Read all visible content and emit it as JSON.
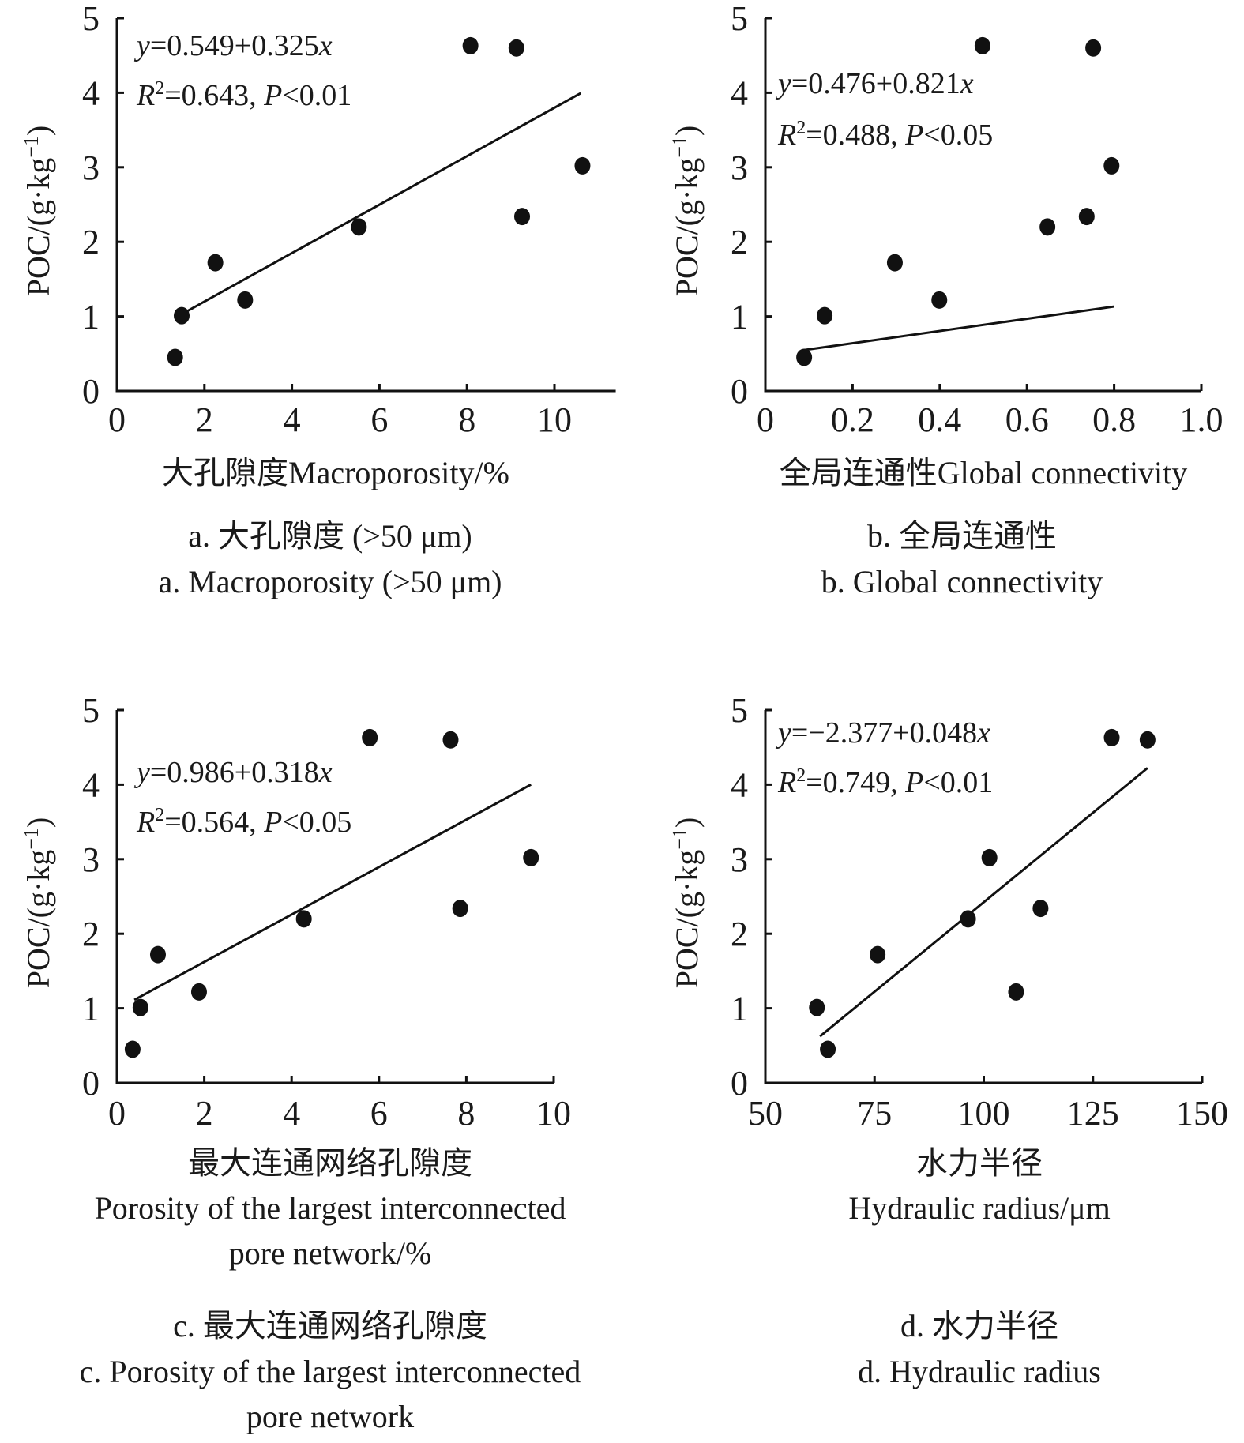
{
  "chart_data": [
    {
      "id": "a",
      "type": "scatter",
      "ylabel": "POC/(g·kg⁻¹)",
      "ylabel_parts": {
        "main": "POC/(g·kg",
        "sup": "−1",
        "close": ")"
      },
      "xlabel_lines": [
        "大孔隙度Macroporosity/%"
      ],
      "caption_lines": [
        "a. 大孔隙度 (>50 μm)",
        "a. Macroporosity (>50 μm)"
      ],
      "xlim": [
        0,
        11.4
      ],
      "ylim": [
        0,
        5
      ],
      "xticks": [
        0,
        2,
        4,
        6,
        8,
        10
      ],
      "xtick_labels": [
        "0",
        "2",
        "4",
        "6",
        "8",
        "10"
      ],
      "yticks": [
        0,
        1,
        2,
        3,
        4,
        5
      ],
      "ytick_labels": [
        "0",
        "1",
        "2",
        "3",
        "4",
        "5"
      ],
      "x": [
        1.33,
        1.48,
        2.25,
        2.93,
        5.53,
        8.08,
        9.13,
        9.26,
        10.64
      ],
      "y": [
        0.45,
        1.01,
        1.72,
        1.22,
        2.2,
        4.63,
        4.6,
        2.34,
        3.02
      ],
      "fit": {
        "intercept": 0.549,
        "slope": 0.325,
        "x_range": [
          1.5,
          10.6
        ]
      },
      "equation": {
        "y_var": "y",
        "rhs": "=0.549+0.325",
        "x_var": "x"
      },
      "stats": {
        "r_var": "R",
        "r_sup": "2",
        "r_value": "=0.643, ",
        "p_var": "P",
        "p_value": "<0.01"
      }
    },
    {
      "id": "b",
      "type": "scatter",
      "ylabel": "POC/(g·kg⁻¹)",
      "ylabel_parts": {
        "main": "POC/(g·kg",
        "sup": "−1",
        "close": ")"
      },
      "xlabel_lines": [
        "全局连通性Global connectivity"
      ],
      "caption_lines": [
        "b. 全局连通性",
        "b. Global connectivity"
      ],
      "xlim": [
        0,
        1.0
      ],
      "ylim": [
        0,
        5
      ],
      "xticks": [
        0,
        0.2,
        0.4,
        0.6,
        0.8,
        1.0
      ],
      "xtick_labels": [
        "0",
        "0.2",
        "0.4",
        "0.6",
        "0.8",
        "1.0"
      ],
      "yticks": [
        0,
        1,
        2,
        3,
        4,
        5
      ],
      "ytick_labels": [
        "0",
        "1",
        "2",
        "3",
        "4",
        "5"
      ],
      "x": [
        0.089,
        0.136,
        0.297,
        0.399,
        0.498,
        0.647,
        0.737,
        0.752,
        0.794
      ],
      "y": [
        0.45,
        1.01,
        1.72,
        1.22,
        4.63,
        2.2,
        2.34,
        4.6,
        3.02
      ],
      "fit": {
        "intercept": 0.476,
        "slope": 0.821,
        "x_range": [
          0.09,
          0.8
        ]
      },
      "equation": {
        "y_var": "y",
        "rhs": "=0.476+0.821",
        "x_var": "x"
      },
      "stats": {
        "r_var": "R",
        "r_sup": "2",
        "r_value": "=0.488, ",
        "p_var": "P",
        "p_value": "<0.05"
      }
    },
    {
      "id": "c",
      "type": "scatter",
      "ylabel": "POC/(g·kg⁻¹)",
      "ylabel_parts": {
        "main": "POC/(g·kg",
        "sup": "−1",
        "close": ")"
      },
      "xlabel_lines": [
        "最大连通网络孔隙度",
        "Porosity of the largest interconnected",
        "pore network/%"
      ],
      "caption_lines": [
        "c. 最大连通网络孔隙度",
        "c. Porosity of the largest interconnected",
        "pore network"
      ],
      "xlim": [
        0,
        10
      ],
      "ylim": [
        0,
        5
      ],
      "xticks": [
        0,
        2,
        4,
        6,
        8,
        10
      ],
      "xtick_labels": [
        "0",
        "2",
        "4",
        "6",
        "8",
        "10"
      ],
      "yticks": [
        0,
        1,
        2,
        3,
        4,
        5
      ],
      "ytick_labels": [
        "0",
        "1",
        "2",
        "3",
        "4",
        "5"
      ],
      "x": [
        0.36,
        0.54,
        0.94,
        1.88,
        4.28,
        5.79,
        7.64,
        7.86,
        9.48
      ],
      "y": [
        0.45,
        1.01,
        1.72,
        1.22,
        2.2,
        4.63,
        4.6,
        2.34,
        3.02
      ],
      "fit": {
        "intercept": 0.986,
        "slope": 0.318,
        "x_range": [
          0.4,
          9.48
        ]
      },
      "equation": {
        "y_var": "y",
        "rhs": "=0.986+0.318",
        "x_var": "x"
      },
      "stats": {
        "r_var": "R",
        "r_sup": "2",
        "r_value": "=0.564, ",
        "p_var": "P",
        "p_value": "<0.05"
      }
    },
    {
      "id": "d",
      "type": "scatter",
      "ylabel": "POC/(g·kg⁻¹)",
      "ylabel_parts": {
        "main": "POC/(g·kg",
        "sup": "−1",
        "close": ")"
      },
      "xlabel_lines": [
        "水力半径",
        "Hydraulic radius/μm"
      ],
      "caption_lines": [
        "d. 水力半径",
        "d. Hydraulic radius"
      ],
      "xlim": [
        50,
        150
      ],
      "ylim": [
        0,
        5
      ],
      "xticks": [
        50,
        75,
        100,
        125,
        150
      ],
      "xtick_labels": [
        "50",
        "75",
        "100",
        "125",
        "150"
      ],
      "yticks": [
        0,
        1,
        2,
        3,
        4,
        5
      ],
      "ytick_labels": [
        "0",
        "1",
        "2",
        "3",
        "4",
        "5"
      ],
      "x": [
        61.8,
        64.3,
        75.7,
        96.4,
        101.3,
        107.4,
        113.0,
        129.3,
        137.5
      ],
      "y": [
        1.01,
        0.45,
        1.72,
        2.2,
        3.02,
        1.22,
        2.34,
        4.63,
        4.6
      ],
      "fit": {
        "intercept": -2.377,
        "slope": 0.048,
        "x_range": [
          62.5,
          137.5
        ]
      },
      "equation": {
        "y_var": "y",
        "rhs": "=−2.377+0.048",
        "x_var": "x"
      },
      "stats": {
        "r_var": "R",
        "r_sup": "2",
        "r_value": "=0.749, ",
        "p_var": "P",
        "p_value": "<0.01"
      }
    }
  ]
}
